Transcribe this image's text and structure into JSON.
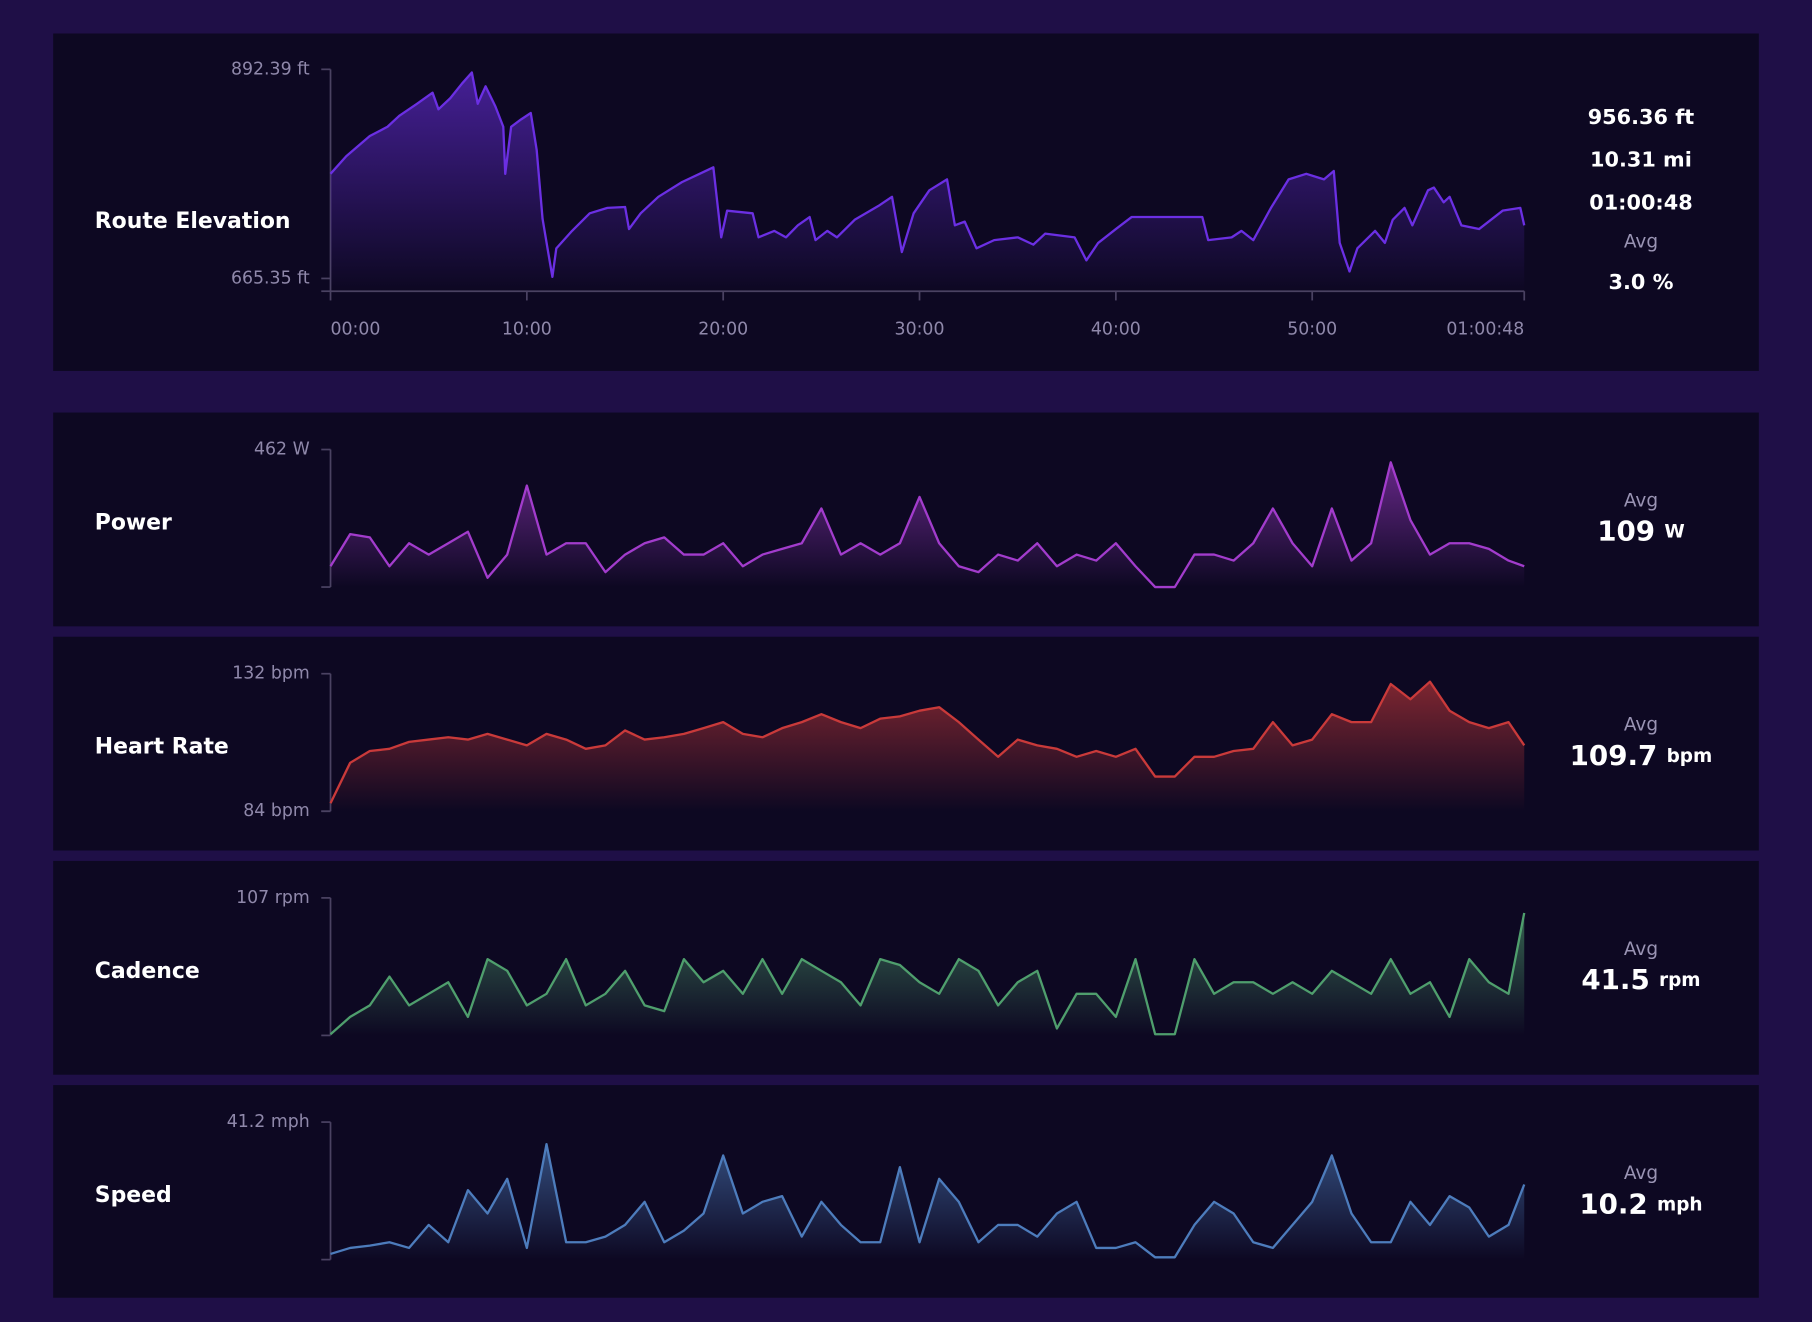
{
  "chart_data": [
    {
      "type": "line",
      "title": "Route Elevation",
      "color": "#6b2fe3",
      "x": [
        0.0,
        0.8,
        2.0,
        2.9,
        3.5,
        4.4,
        5.2,
        5.5,
        6.1,
        6.7,
        7.2,
        7.5,
        7.9,
        8.4,
        8.8,
        8.9,
        9.2,
        9.7,
        10.2,
        10.5,
        10.8,
        11.1,
        11.3,
        11.5,
        12.3,
        13.2,
        14.1,
        15.0,
        15.2,
        15.8,
        16.7,
        17.9,
        18.8,
        19.5,
        19.9,
        20.2,
        21.5,
        21.8,
        22.6,
        23.2,
        23.8,
        24.4,
        24.7,
        25.3,
        25.8,
        26.7,
        27.9,
        28.6,
        29.1,
        29.7,
        30.5,
        31.4,
        31.8,
        32.3,
        32.9,
        33.8,
        35.0,
        35.8,
        36.4,
        37.9,
        38.5,
        39.1,
        40.0,
        40.8,
        44.4,
        44.7,
        45.9,
        46.4,
        47.0,
        47.9,
        48.8,
        49.7,
        50.6,
        51.1,
        51.4,
        51.9,
        52.3,
        53.2,
        53.7,
        54.1,
        54.7,
        55.1,
        55.9,
        56.2,
        56.7,
        57.0,
        57.6,
        58.5,
        59.7,
        60.6,
        60.8
      ],
      "values": [
        779,
        798,
        820,
        830,
        842,
        855,
        867,
        849,
        861,
        877,
        889,
        855,
        874,
        852,
        830,
        779,
        830,
        838,
        845,
        805,
        730,
        692,
        667,
        698,
        717,
        736,
        742,
        743,
        719,
        736,
        754,
        770,
        779,
        786,
        710,
        739,
        736,
        710,
        717,
        710,
        723,
        732,
        707,
        717,
        710,
        729,
        744,
        754,
        694,
        736,
        761,
        773,
        723,
        727,
        698,
        707,
        710,
        702,
        714,
        710,
        685,
        704,
        719,
        732,
        732,
        707,
        710,
        717,
        707,
        742,
        773,
        779,
        773,
        782,
        704,
        673,
        698,
        717,
        704,
        729,
        742,
        723,
        761,
        764,
        748,
        754,
        723,
        719,
        739,
        742,
        723
      ],
      "xlim": [
        0,
        60.8
      ],
      "xticks": [
        {
          "value": 0,
          "label": "00:00"
        },
        {
          "value": 10,
          "label": "10:00"
        },
        {
          "value": 20,
          "label": "20:00"
        },
        {
          "value": 30,
          "label": "30:00"
        },
        {
          "value": 40,
          "label": "40:00"
        },
        {
          "value": 50,
          "label": "50:00"
        },
        {
          "value": 60.8,
          "label": "01:00:48"
        }
      ],
      "ylim": [
        651.5,
        892.39
      ],
      "yticks": [
        {
          "value": 892.39,
          "label": "892.39 ft"
        },
        {
          "value": 665.35,
          "label": "665.35 ft"
        }
      ],
      "stats": [
        "956.36 ft",
        "10.31 mi",
        "01:00:48"
      ],
      "avg_label": "Avg",
      "avg": "3.0 %"
    },
    {
      "type": "line",
      "title": "Power",
      "color": "#a23ccc",
      "x": [
        0,
        1,
        2,
        3,
        4,
        5,
        6,
        7,
        8,
        9,
        10,
        11,
        12,
        13,
        14,
        15,
        16,
        17,
        18,
        19,
        20,
        21,
        22,
        23,
        24,
        25,
        26,
        27,
        28,
        29,
        30,
        31,
        32,
        33,
        34,
        35,
        36,
        37,
        38,
        39,
        40,
        41,
        42,
        43,
        44,
        45,
        46,
        47,
        48,
        49,
        50,
        51,
        52,
        53,
        54,
        55,
        56,
        57,
        58,
        59,
        60,
        60.8
      ],
      "values": [
        70,
        178,
        167,
        70,
        147,
        109,
        147,
        186,
        31,
        109,
        341,
        109,
        147,
        147,
        50,
        109,
        147,
        167,
        109,
        109,
        147,
        70,
        109,
        128,
        147,
        264,
        109,
        147,
        109,
        147,
        303,
        147,
        70,
        50,
        109,
        89,
        147,
        70,
        109,
        89,
        147,
        70,
        0,
        0,
        109,
        109,
        89,
        147,
        264,
        147,
        70,
        264,
        89,
        147,
        419,
        225,
        109,
        147,
        147,
        128,
        89,
        70
      ],
      "xlim": [
        0,
        60.8
      ],
      "ylim": [
        0,
        462
      ],
      "yticks": [
        {
          "value": 462,
          "label": "462 W"
        }
      ],
      "avg_label": "Avg",
      "avg": 109,
      "avg_unit": "W"
    },
    {
      "type": "line",
      "title": "Heart Rate",
      "color": "#c93a3a",
      "x": [
        0,
        1,
        2,
        3,
        4,
        5,
        6,
        7,
        8,
        9,
        10,
        11,
        12,
        13,
        14,
        15,
        16,
        17,
        18,
        19,
        20,
        21,
        22,
        23,
        24,
        25,
        26,
        27,
        28,
        29,
        30,
        31,
        32,
        33,
        34,
        35,
        36,
        37,
        38,
        39,
        40,
        41,
        42,
        43,
        44,
        45,
        46,
        47,
        48,
        49,
        50,
        51,
        52,
        53,
        54,
        55,
        56,
        57,
        58,
        59,
        60,
        60.8
      ],
      "values": [
        86.8,
        100.9,
        105.0,
        105.8,
        108.2,
        109.0,
        109.8,
        109.0,
        111.0,
        109.0,
        107.0,
        111.0,
        109.0,
        105.8,
        107.0,
        112.2,
        109.0,
        109.8,
        111.0,
        113.0,
        115.1,
        111.0,
        109.8,
        113.0,
        115.1,
        117.9,
        115.1,
        113.0,
        116.3,
        117.1,
        119.1,
        120.3,
        115.1,
        109.0,
        103.0,
        109.0,
        107.0,
        105.8,
        103.0,
        105.0,
        103.0,
        105.8,
        96.1,
        96.1,
        103.0,
        103.0,
        105.0,
        105.8,
        115.1,
        107.0,
        109.0,
        117.9,
        115.1,
        115.1,
        128.4,
        123.1,
        129.2,
        119.1,
        115.1,
        113.0,
        115.1,
        107.0
      ],
      "xlim": [
        0,
        60.8
      ],
      "ylim": [
        84,
        132
      ],
      "yticks": [
        {
          "value": 132,
          "label": "132 bpm"
        },
        {
          "value": 84,
          "label": "84 bpm"
        }
      ],
      "avg_label": "Avg",
      "avg": 109.7,
      "avg_unit": "bpm"
    },
    {
      "type": "line",
      "title": "Cadence",
      "color": "#4f9e6d",
      "x": [
        0,
        1,
        2,
        3,
        4,
        5,
        6,
        7,
        8,
        9,
        10,
        11,
        12,
        13,
        14,
        15,
        16,
        17,
        18,
        19,
        20,
        21,
        22,
        23,
        24,
        25,
        26,
        27,
        28,
        29,
        30,
        31,
        32,
        33,
        34,
        35,
        36,
        37,
        38,
        39,
        40,
        41,
        42,
        43,
        44,
        45,
        46,
        47,
        48,
        49,
        50,
        51,
        52,
        53,
        54,
        55,
        56,
        57,
        58,
        59,
        60,
        60.8
      ],
      "values": [
        0.9,
        14.4,
        23.4,
        45.8,
        23.4,
        32.4,
        41.4,
        14.4,
        59.3,
        50.3,
        23.4,
        32.4,
        59.3,
        23.4,
        32.4,
        50.3,
        23.4,
        18.9,
        59.3,
        41.4,
        50.3,
        32.4,
        59.3,
        32.4,
        59.3,
        50.3,
        41.4,
        23.4,
        59.3,
        54.8,
        41.4,
        32.4,
        59.3,
        50.3,
        23.4,
        41.4,
        50.3,
        5.4,
        32.4,
        32.4,
        14.4,
        59.3,
        0.9,
        0.9,
        59.3,
        32.4,
        41.4,
        41.4,
        32.4,
        41.4,
        32.4,
        50.3,
        41.4,
        32.4,
        59.3,
        32.4,
        41.4,
        14.4,
        59.3,
        41.4,
        32.4,
        95.3
      ],
      "xlim": [
        0,
        60.8
      ],
      "ylim": [
        0,
        107
      ],
      "yticks": [
        {
          "value": 107,
          "label": "107 rpm"
        }
      ],
      "avg_label": "Avg",
      "avg": 41.5,
      "avg_unit": "rpm"
    },
    {
      "type": "line",
      "title": "Speed",
      "color": "#4d7cbc",
      "x": [
        0,
        1,
        2,
        3,
        4,
        5,
        6,
        7,
        8,
        9,
        10,
        11,
        12,
        13,
        14,
        15,
        16,
        17,
        18,
        19,
        20,
        21,
        22,
        23,
        24,
        25,
        26,
        27,
        28,
        29,
        30,
        31,
        32,
        33,
        34,
        35,
        36,
        37,
        38,
        39,
        40,
        41,
        42,
        43,
        44,
        45,
        46,
        47,
        48,
        49,
        50,
        51,
        52,
        53,
        54,
        55,
        56,
        57,
        58,
        59,
        60,
        60.8
      ],
      "values": [
        1.7,
        3.5,
        4.2,
        5.2,
        3.5,
        10.4,
        5.2,
        20.8,
        13.8,
        24.2,
        3.5,
        34.6,
        5.2,
        5.2,
        6.9,
        10.4,
        17.3,
        5.2,
        8.7,
        13.8,
        31.2,
        13.8,
        17.3,
        19.0,
        6.9,
        17.3,
        10.4,
        5.2,
        5.2,
        27.7,
        5.2,
        24.2,
        17.3,
        5.2,
        10.4,
        10.4,
        6.9,
        13.8,
        17.3,
        3.5,
        3.5,
        5.2,
        0.7,
        0.7,
        10.4,
        17.3,
        13.8,
        5.2,
        3.5,
        10.4,
        17.3,
        31.2,
        13.8,
        5.2,
        5.2,
        17.3,
        10.4,
        19.0,
        15.6,
        6.9,
        10.4,
        22.5
      ],
      "xlim": [
        0,
        60.8
      ],
      "ylim": [
        0,
        41.2
      ],
      "yticks": [
        {
          "value": 41.2,
          "label": "41.2 mph"
        }
      ],
      "avg_label": "Avg",
      "avg": 10.2,
      "avg_unit": "mph"
    }
  ]
}
